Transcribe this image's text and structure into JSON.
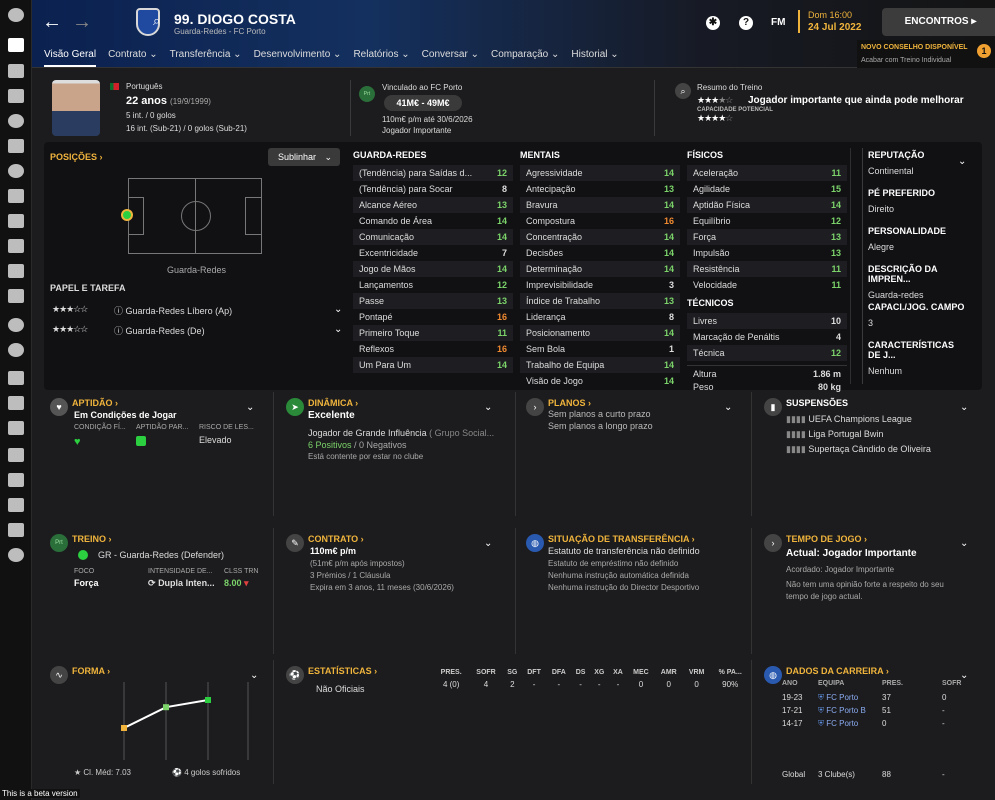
{
  "header": {
    "player_title": "99. DIOGO COSTA",
    "player_subtitle": "Guarda-Redes - FC Porto",
    "fm_label": "FM",
    "date_line1": "Dom 16:00",
    "date_line2": "24 Jul 2022",
    "continue_button": "ENCONTROS",
    "notification_title": "NOVO CONSELHO DISPONÍVEL",
    "notification_body": "Acabar com Treino Individual",
    "notification_count": "1"
  },
  "tabs": [
    "Visão Geral",
    "Contrato",
    "Transferência",
    "Desenvolvimento",
    "Relatórios",
    "Conversar",
    "Comparação",
    "Historial"
  ],
  "profile": {
    "nationality": "Português",
    "age_main": "22 anos",
    "age_dob": "(19/9/1999)",
    "caps_senior": "5 int. / 0 golos",
    "caps_u21": "16 int. (Sub-21) / 0 golos (Sub-21)",
    "contract_badge": "Prt",
    "contract_heading": "Vinculado ao FC Porto",
    "value_range": "41M€ - 49M€",
    "wage_line": "110m€ p/m até 30/6/2026",
    "squad_status": "Jogador Importante",
    "training_heading": "Resumo do Treino",
    "training_desc": "Jogador importante que ainda pode melhorar",
    "potential_label": "CAPACIDADE POTENCIAL"
  },
  "positions": {
    "label": "POSIÇÕES",
    "highlight_button": "Sublinhar",
    "position_name": "Guarda-Redes",
    "role_label": "PAPEL E TAREFA",
    "roles": [
      {
        "stars": "★★★☆☆",
        "name": "Guarda-Redes Líbero (Ap)"
      },
      {
        "stars": "★★★☆☆",
        "name": "Guarda-Redes (De)"
      }
    ]
  },
  "attributes": {
    "goalkeeping": {
      "title": "GUARDA-REDES",
      "rows": [
        {
          "n": "(Tendência) para Saídas d...",
          "v": "12",
          "c": "g"
        },
        {
          "n": "(Tendência) para Socar",
          "v": "8",
          "c": "w"
        },
        {
          "n": "Alcance Aéreo",
          "v": "13",
          "c": "g"
        },
        {
          "n": "Comando de Área",
          "v": "14",
          "c": "g"
        },
        {
          "n": "Comunicação",
          "v": "14",
          "c": "g"
        },
        {
          "n": "Excentricidade",
          "v": "7",
          "c": "w"
        },
        {
          "n": "Jogo de Mãos",
          "v": "14",
          "c": "g"
        },
        {
          "n": "Lançamentos",
          "v": "12",
          "c": "g"
        },
        {
          "n": "Passe",
          "v": "13",
          "c": "g"
        },
        {
          "n": "Pontapé",
          "v": "16",
          "c": "o"
        },
        {
          "n": "Primeiro Toque",
          "v": "11",
          "c": "g"
        },
        {
          "n": "Reflexos",
          "v": "16",
          "c": "o"
        },
        {
          "n": "Um Para Um",
          "v": "14",
          "c": "g"
        }
      ]
    },
    "mental": {
      "title": "MENTAIS",
      "rows": [
        {
          "n": "Agressividade",
          "v": "14",
          "c": "g"
        },
        {
          "n": "Antecipação",
          "v": "13",
          "c": "g"
        },
        {
          "n": "Bravura",
          "v": "14",
          "c": "g"
        },
        {
          "n": "Compostura",
          "v": "16",
          "c": "o"
        },
        {
          "n": "Concentração",
          "v": "14",
          "c": "g"
        },
        {
          "n": "Decisões",
          "v": "14",
          "c": "g"
        },
        {
          "n": "Determinação",
          "v": "14",
          "c": "g"
        },
        {
          "n": "Imprevisibilidade",
          "v": "3",
          "c": "w"
        },
        {
          "n": "Índice de Trabalho",
          "v": "13",
          "c": "g"
        },
        {
          "n": "Liderança",
          "v": "8",
          "c": "w"
        },
        {
          "n": "Posicionamento",
          "v": "14",
          "c": "g"
        },
        {
          "n": "Sem Bola",
          "v": "1",
          "c": "w"
        },
        {
          "n": "Trabalho de Equipa",
          "v": "14",
          "c": "g"
        },
        {
          "n": "Visão de Jogo",
          "v": "14",
          "c": "g"
        }
      ]
    },
    "physical": {
      "title": "FÍSICOS",
      "rows": [
        {
          "n": "Aceleração",
          "v": "11",
          "c": "g"
        },
        {
          "n": "Agilidade",
          "v": "15",
          "c": "g"
        },
        {
          "n": "Aptidão Física",
          "v": "14",
          "c": "g"
        },
        {
          "n": "Equilíbrio",
          "v": "12",
          "c": "g"
        },
        {
          "n": "Força",
          "v": "13",
          "c": "g"
        },
        {
          "n": "Impulsão",
          "v": "13",
          "c": "g"
        },
        {
          "n": "Resistência",
          "v": "11",
          "c": "g"
        },
        {
          "n": "Velocidade",
          "v": "11",
          "c": "g"
        }
      ]
    },
    "technical": {
      "title": "TÉCNICOS",
      "rows": [
        {
          "n": "Livres",
          "v": "10",
          "c": "w"
        },
        {
          "n": "Marcação de Penáltis",
          "v": "4",
          "c": "w"
        },
        {
          "n": "Técnica",
          "v": "12",
          "c": "g"
        }
      ]
    },
    "height_label": "Altura",
    "height_value": "1.86 m",
    "weight_label": "Peso",
    "weight_value": "80 kg"
  },
  "right_info": [
    {
      "h": "REPUTAÇÃO",
      "d": "Continental"
    },
    {
      "h": "PÉ PREFERIDO",
      "d": "Direito"
    },
    {
      "h": "PERSONALIDADE",
      "d": "Alegre"
    },
    {
      "h": "DESCRIÇÃO DA IMPREN...",
      "d": "Guarda-redes"
    },
    {
      "h": "CAPACI./JOG. CAMPO",
      "d": "3"
    },
    {
      "h": "CARACTERÍSTICAS DE J...",
      "d": "Nenhum"
    }
  ],
  "cards_row1": {
    "fitness": {
      "title": "APTIDÃO",
      "status": "Em Condições de Jogar",
      "c1": "CONDIÇÃO FÍ...",
      "c2": "APTIDÃO PAR...",
      "c3": "RISCO DE LES...",
      "risk": "Elevado"
    },
    "dynamics": {
      "title": "DINÂMICA",
      "status": "Excelente",
      "line1": "Jogador de Grande Influência",
      "line1b": "( Grupo Social...",
      "pos": "6 Positivos",
      "neg": " / 0 Negativos",
      "note": "Está contente por estar no clube"
    },
    "plans": {
      "title": "PLANOS",
      "line1": "Sem planos a curto prazo",
      "line2": "Sem planos a longo prazo"
    },
    "suspensions": {
      "title": "SUSPENSÕES",
      "items": [
        "UEFA Champions League",
        "Liga Portugal Bwin",
        "Supertaça Cândido de Oliveira"
      ]
    }
  },
  "cards_row2": {
    "training": {
      "title": "TREINO",
      "badge": "Prt",
      "role": "GR - Guarda-Redes (Defender)",
      "focus_label": "FOCO",
      "focus": "Força",
      "intensity_label": "INTENSIDADE DE...",
      "intensity": "Dupla Inten...",
      "rating_label": "CLSS TRN",
      "rating": "8.00"
    },
    "contract": {
      "title": "CONTRATO",
      "wage": "110m€ p/m",
      "l1": "(51m€ p/m após impostos)",
      "l2": "3 Prémios / 1 Cláusula",
      "l3": "Expira em 3 anos, 11 meses  (30/6/2026)"
    },
    "transfer": {
      "title": "SITUAÇÃO DE TRANSFERÊNCIA",
      "l1": "Estatuto de transferência não definido",
      "l2": "Estatuto de empréstimo não definido",
      "l3": "Nenhuma instrução automática definida",
      "l4": "Nenhuma instrução do Director Desportivo"
    },
    "playtime": {
      "title": "TEMPO DE JOGO",
      "status": "Actual: Jogador Importante",
      "l1": "Acordado: Jogador Importante",
      "l2": "Não tem uma opinião forte a respeito do seu",
      "l3": "tempo de jogo actual."
    }
  },
  "form": {
    "title": "FORMA",
    "avg": "Cl. Méd: 7.03",
    "goals": "4 golos sofridos",
    "points": [
      4.0,
      6.6,
      7.5
    ]
  },
  "stats": {
    "title": "ESTATÍSTICAS",
    "headers": [
      "PRES.",
      "SOFR",
      "SG",
      "DFT",
      "DFA",
      "DS",
      "XG",
      "XA",
      "MEC",
      "AMR",
      "VRM",
      "% PA..."
    ],
    "row_label": "Não Oficiais",
    "row": [
      "4 (0)",
      "4",
      "2",
      "-",
      "-",
      "-",
      "-",
      "-",
      "0",
      "0",
      "0",
      "90%"
    ]
  },
  "career": {
    "title": "DADOS DA CARREIRA",
    "h_year": "ANO",
    "h_team": "EQUIPA",
    "h_apps": "PRES.",
    "h_conc": "SOFR",
    "rows": [
      {
        "year": "19-23",
        "team": "FC Porto",
        "apps": "37",
        "conc": "0"
      },
      {
        "year": "17-21",
        "team": "FC Porto B",
        "apps": "51",
        "conc": "-"
      },
      {
        "year": "14-17",
        "team": "FC Porto",
        "apps": "0",
        "conc": "-"
      }
    ],
    "total_label": "Global",
    "total_clubs": "3 Clube(s)",
    "total_apps": "88",
    "total_conc": "-"
  },
  "beta_note": "This is a beta version",
  "colors": {
    "accent": "#f0b43c",
    "good": "#7bd36a",
    "great": "#f08a30"
  }
}
